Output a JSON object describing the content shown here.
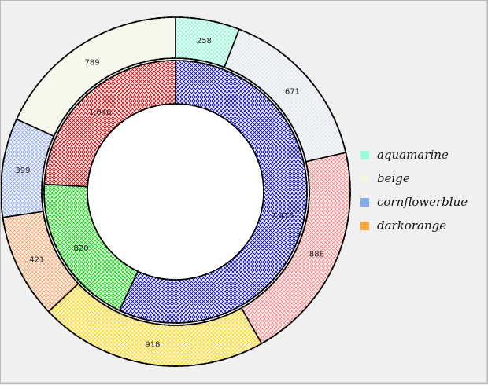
{
  "chart_data": {
    "type": "donut",
    "legend_position": "right",
    "legend": [
      {
        "label": "aquamarine",
        "color": "#7fffd4"
      },
      {
        "label": "beige",
        "color": "#f5f5dc"
      },
      {
        "label": "cornflowerblue",
        "color": "#6495ed"
      },
      {
        "label": "darkorange",
        "color": "#ff8c00"
      }
    ],
    "outer_ring": [
      {
        "label": "258",
        "value": 258,
        "color": "#7fffd4"
      },
      {
        "label": "671",
        "value": 671,
        "color": "#dde3ee"
      },
      {
        "label": "886",
        "value": 886,
        "color": "#ff8080"
      },
      {
        "label": "918",
        "value": 918,
        "color": "#ffd700"
      },
      {
        "label": "421",
        "value": 421,
        "color": "#ffa060"
      },
      {
        "label": "399",
        "value": 399,
        "color": "#8fa8f0"
      },
      {
        "label": "789",
        "value": 789,
        "color": "#f5f5dc"
      }
    ],
    "inner_ring": [
      {
        "label": "2,476",
        "value": 2476,
        "color": "#0000cd"
      },
      {
        "label": "820",
        "value": 820,
        "color": "#00dd00"
      },
      {
        "label": "1,046",
        "value": 1046,
        "color": "#dd0000"
      }
    ]
  }
}
